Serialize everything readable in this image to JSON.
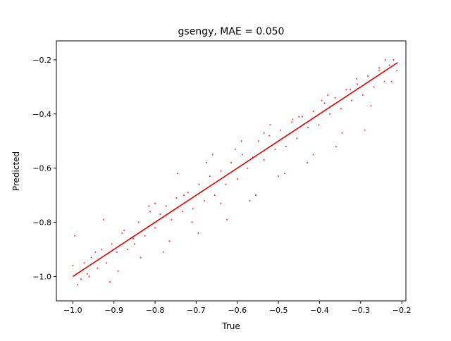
{
  "chart_data": {
    "type": "scatter",
    "title": "gsengy, MAE = 0.050",
    "xlabel": "True",
    "ylabel": "Predicted",
    "xlim": [
      -1.04,
      -0.19
    ],
    "ylim": [
      -1.09,
      -0.13
    ],
    "xticks": [
      -1.0,
      -0.9,
      -0.8,
      -0.7,
      -0.6,
      -0.5,
      -0.4,
      -0.3,
      -0.2
    ],
    "yticks": [
      -1.0,
      -0.8,
      -0.6,
      -0.4,
      -0.2
    ],
    "xtick_labels": [
      "−1.0",
      "−0.9",
      "−0.8",
      "−0.7",
      "−0.6",
      "−0.5",
      "−0.4",
      "−0.3",
      "−0.2"
    ],
    "ytick_labels": [
      "−1.0",
      "−0.8",
      "−0.6",
      "−0.4",
      "−0.2"
    ],
    "grid": false,
    "point_color": "#ff0000",
    "line_color": "#e00000",
    "line": {
      "x": [
        -1.0,
        -0.21
      ],
      "y": [
        -1.0,
        -0.21
      ]
    },
    "x": [
      -1.0,
      -0.988,
      -0.972,
      -0.965,
      -0.955,
      -0.94,
      -0.93,
      -0.918,
      -0.905,
      -0.893,
      -0.88,
      -0.867,
      -0.853,
      -0.84,
      -0.825,
      -0.812,
      -0.8,
      -0.787,
      -0.773,
      -0.76,
      -0.748,
      -0.733,
      -0.72,
      -0.708,
      -0.693,
      -0.68,
      -0.667,
      -0.655,
      -0.64,
      -0.628,
      -0.615,
      -0.6,
      -0.588,
      -0.575,
      -0.562,
      -0.548,
      -0.535,
      -0.522,
      -0.508,
      -0.495,
      -0.482,
      -0.468,
      -0.455,
      -0.442,
      -0.428,
      -0.415,
      -0.402,
      -0.388,
      -0.375,
      -0.362,
      -0.348,
      -0.335,
      -0.322,
      -0.308,
      -0.295,
      -0.282,
      -0.268,
      -0.255,
      -0.242,
      -0.23,
      -0.22,
      -0.212,
      -0.995,
      -0.96,
      -0.925,
      -0.89,
      -0.85,
      -0.815,
      -0.78,
      -0.745,
      -0.71,
      -0.675,
      -0.64,
      -0.605,
      -0.57,
      -0.535,
      -0.5,
      -0.465,
      -0.43,
      -0.395,
      -0.36,
      -0.325,
      -0.29,
      -0.255,
      -0.225,
      -0.98,
      -0.945,
      -0.91,
      -0.875,
      -0.835,
      -0.8,
      -0.765,
      -0.73,
      -0.695,
      -0.66,
      -0.625,
      -0.59,
      -0.555,
      -0.52,
      -0.485,
      -0.45,
      -0.415,
      -0.38,
      -0.345,
      -0.31,
      -0.275,
      -0.24
    ],
    "y": [
      -0.96,
      -1.03,
      -0.95,
      -0.99,
      -0.93,
      -0.97,
      -0.9,
      -0.95,
      -0.88,
      -0.91,
      -0.84,
      -0.9,
      -0.86,
      -0.8,
      -0.85,
      -0.76,
      -0.82,
      -0.77,
      -0.74,
      -0.79,
      -0.71,
      -0.76,
      -0.69,
      -0.75,
      -0.66,
      -0.72,
      -0.63,
      -0.7,
      -0.61,
      -0.66,
      -0.58,
      -0.64,
      -0.55,
      -0.6,
      -0.56,
      -0.5,
      -0.57,
      -0.48,
      -0.53,
      -0.46,
      -0.52,
      -0.43,
      -0.49,
      -0.41,
      -0.45,
      -0.39,
      -0.44,
      -0.36,
      -0.4,
      -0.34,
      -0.38,
      -0.31,
      -0.35,
      -0.29,
      -0.33,
      -0.26,
      -0.3,
      -0.24,
      -0.28,
      -0.22,
      -0.2,
      -0.24,
      -0.85,
      -1.0,
      -0.79,
      -0.98,
      -0.88,
      -0.74,
      -0.91,
      -0.62,
      -0.8,
      -0.58,
      -0.73,
      -0.53,
      -0.72,
      -0.47,
      -0.63,
      -0.42,
      -0.58,
      -0.35,
      -0.52,
      -0.31,
      -0.46,
      -0.23,
      -0.28,
      -1.01,
      -0.91,
      -1.02,
      -0.83,
      -0.93,
      -0.73,
      -0.87,
      -0.7,
      -0.84,
      -0.55,
      -0.79,
      -0.5,
      -0.7,
      -0.44,
      -0.62,
      -0.41,
      -0.55,
      -0.33,
      -0.47,
      -0.27,
      -0.37,
      -0.2
    ]
  }
}
